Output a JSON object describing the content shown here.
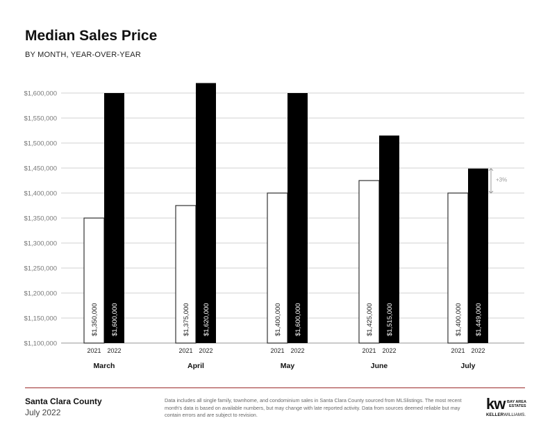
{
  "chart_data": {
    "type": "bar",
    "title": "Median Sales Price",
    "subtitle": "BY MONTH, YEAR-OVER-YEAR",
    "categories": [
      "March",
      "April",
      "May",
      "June",
      "July"
    ],
    "series": [
      {
        "name": "2021",
        "values": [
          1350000,
          1375000,
          1400000,
          1425000,
          1400000
        ],
        "labels": [
          "$1,350,000",
          "$1,375,000",
          "$1,400,000",
          "$1,425,000",
          "$1,400,000"
        ],
        "color": "#ffffff"
      },
      {
        "name": "2022",
        "values": [
          1600000,
          1620000,
          1600000,
          1515000,
          1449000
        ],
        "labels": [
          "$1,600,000",
          "$1,620,000",
          "$1,600,000",
          "$1,515,000",
          "$1,449,000"
        ],
        "color": "#000000"
      }
    ],
    "ylim": [
      1100000,
      1600000
    ],
    "yticks": [
      "$1,100,000",
      "$1,150,000",
      "$1,200,000",
      "$1,250,000",
      "$1,300,000",
      "$1,350,000",
      "$1,400,000",
      "$1,450,000",
      "$1,500,000",
      "$1,550,000",
      "$1,600,000"
    ],
    "ytick_values": [
      1100000,
      1150000,
      1200000,
      1250000,
      1300000,
      1350000,
      1400000,
      1450000,
      1500000,
      1550000,
      1600000
    ],
    "grid": true,
    "annotation": {
      "category": "July",
      "text": "+3%"
    }
  },
  "footer": {
    "county": "Santa Clara County",
    "date": "July 2022",
    "note": "Data includes all single family, townhome, and condominium sales in Santa Clara County sourced from MLSlistings. The most recent month's data is based on available numbers, but may change with late reported activity. Data from sources deemed reliable but may contain errors and are subject to revision.",
    "logo_text": "kw BAY AREA ESTATES KELLERWILLIAMS"
  },
  "colors": {
    "accent_line": "#9b2a2a",
    "grid": "#d9d9d9"
  }
}
